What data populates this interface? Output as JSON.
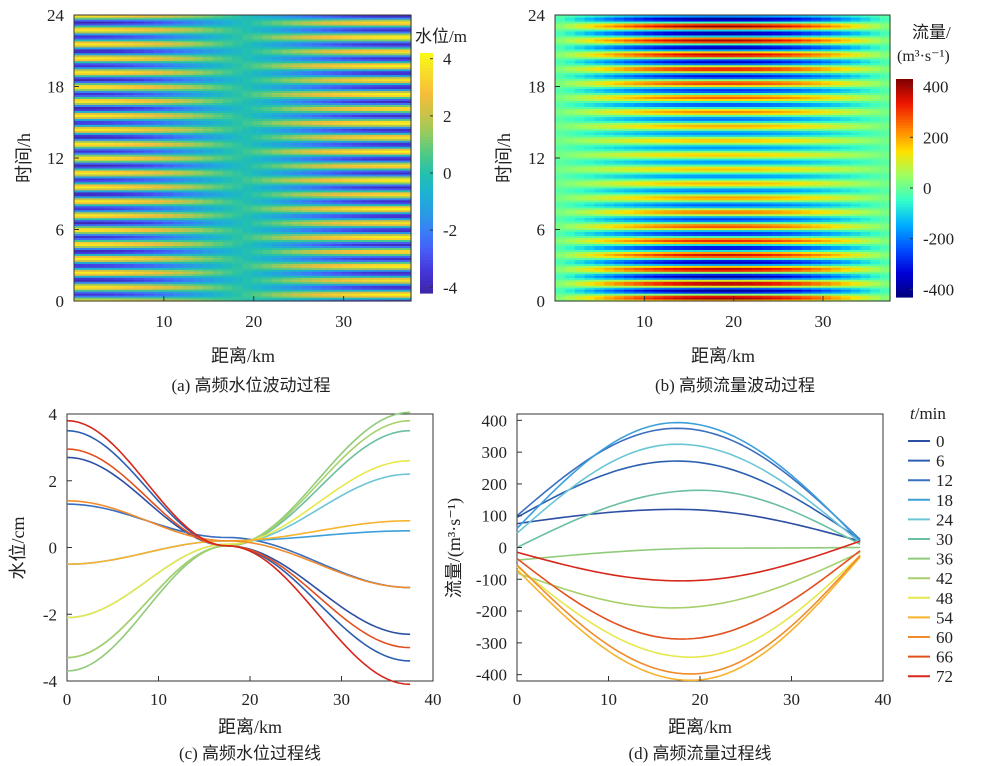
{
  "colormap": [
    "#3e26a8",
    "#4433d6",
    "#4758f5",
    "#3a7cf8",
    "#2a9be3",
    "#1cb2d2",
    "#24c1ac",
    "#52ca84",
    "#96cb5e",
    "#cdc245",
    "#f6be3a",
    "#f7dc2a",
    "#f9fb15"
  ],
  "colormap_b": [
    "#00007f",
    "#0000d9",
    "#0050ff",
    "#00b0ff",
    "#35ffc7",
    "#9cff60",
    "#ffe100",
    "#ff7a00",
    "#ee1500",
    "#7f0000"
  ],
  "line_colors": [
    "#2c4fa3",
    "#2c5fb0",
    "#3a6fc0",
    "#3c9fdb",
    "#6ac6d6",
    "#6bbfa0",
    "#8fcc7a",
    "#a7d06a",
    "#e6e84c",
    "#f7b32b",
    "#f08c2c",
    "#e2501f",
    "#d6271b"
  ],
  "chart_data": [
    {
      "id": "a",
      "type": "heatmap",
      "caption": "(a) 高频水位波动过程",
      "xlabel": "距离/km",
      "ylabel": "时间/h",
      "x_ticks": [
        "10",
        "20",
        "30"
      ],
      "y_ticks": [
        "0",
        "6",
        "12",
        "18",
        "24"
      ],
      "xlim": [
        0,
        37.5
      ],
      "ylim": [
        0,
        24
      ],
      "colorbar_label": "水位/m",
      "colorbar_ticks": [
        "4",
        "2",
        "0",
        "-2",
        "-4"
      ],
      "clim": [
        -4.2,
        4.2
      ],
      "description_values": {
        "period_h": 1.2,
        "node_km": 18.5,
        "amplitude_left_m": 3.8,
        "amplitude_right_m": 4.1
      }
    },
    {
      "id": "b",
      "type": "heatmap",
      "caption": "(b) 高频流量波动过程",
      "xlabel": "距离/km",
      "ylabel": "时间/h",
      "x_ticks": [
        "10",
        "20",
        "30"
      ],
      "y_ticks": [
        "0",
        "6",
        "12",
        "18",
        "24"
      ],
      "xlim": [
        0,
        37.5
      ],
      "ylim": [
        0,
        24
      ],
      "colorbar_label": "流量/",
      "colorbar_label_unit": "(m³·s⁻¹)",
      "colorbar_ticks": [
        "400",
        "200",
        "0",
        "-200",
        "-400"
      ],
      "clim": [
        -430,
        430
      ]
    },
    {
      "id": "c",
      "type": "line",
      "caption": "(c) 高频水位过程线",
      "xlabel": "距离/km",
      "ylabel": "水位/cm",
      "xlim": [
        0,
        40
      ],
      "ylim": [
        -4,
        4
      ],
      "x_ticks": [
        "0",
        "10",
        "20",
        "30",
        "40"
      ],
      "y_ticks": [
        "4",
        "2",
        "0",
        "-2",
        "-4"
      ],
      "legend_title": "t/min",
      "series": [
        {
          "name": "0",
          "x": [
            0,
            17.5,
            37.5
          ],
          "y": [
            2.7,
            0.05,
            -2.6
          ]
        },
        {
          "name": "6",
          "x": [
            0,
            17.5,
            37.5
          ],
          "y": [
            3.5,
            0.05,
            -3.4
          ]
        },
        {
          "name": "12",
          "x": [
            0,
            17.5,
            37.5
          ],
          "y": [
            1.3,
            0.3,
            -1.2
          ]
        },
        {
          "name": "18",
          "x": [
            0,
            17.5,
            37.5
          ],
          "y": [
            -0.5,
            0.2,
            0.5
          ]
        },
        {
          "name": "24",
          "x": [
            0,
            17.5,
            37.5
          ],
          "y": [
            -2.1,
            0.1,
            2.2
          ]
        },
        {
          "name": "30",
          "x": [
            0,
            17.5,
            37.5
          ],
          "y": [
            -3.3,
            0.05,
            3.5
          ]
        },
        {
          "name": "36",
          "x": [
            0,
            17.5,
            37.5
          ],
          "y": [
            -3.7,
            0.05,
            4.05
          ]
        },
        {
          "name": "42",
          "x": [
            0,
            17.5,
            37.5
          ],
          "y": [
            -3.3,
            0.05,
            3.8
          ]
        },
        {
          "name": "48",
          "x": [
            0,
            17.5,
            37.5
          ],
          "y": [
            -2.1,
            0.1,
            2.6
          ]
        },
        {
          "name": "54",
          "x": [
            0,
            17.5,
            37.5
          ],
          "y": [
            -0.5,
            0.2,
            0.8
          ]
        },
        {
          "name": "60",
          "x": [
            0,
            17.5,
            37.5
          ],
          "y": [
            1.4,
            0.2,
            -1.2
          ]
        },
        {
          "name": "66",
          "x": [
            0,
            17.5,
            37.5
          ],
          "y": [
            2.95,
            0.05,
            -3.0
          ]
        },
        {
          "name": "72",
          "x": [
            0,
            17.5,
            37.5
          ],
          "y": [
            3.8,
            0.05,
            -4.1
          ]
        }
      ]
    },
    {
      "id": "d",
      "type": "line",
      "caption": "(d) 高频流量过程线",
      "xlabel": "距离/km",
      "ylabel": "流量/(m³·s⁻¹)",
      "xlim": [
        0,
        40
      ],
      "ylim": [
        -420,
        420
      ],
      "x_ticks": [
        "0",
        "10",
        "20",
        "30",
        "40"
      ],
      "y_ticks": [
        "400",
        "300",
        "200",
        "100",
        "0",
        "-100",
        "-200",
        "-300",
        "-400"
      ],
      "series": [
        {
          "name": "0",
          "x": [
            0,
            17.5,
            37.5
          ],
          "y": [
            75,
            120,
            20
          ]
        },
        {
          "name": "6",
          "x": [
            0,
            17.5,
            37.5
          ],
          "y": [
            95,
            272,
            25
          ]
        },
        {
          "name": "12",
          "x": [
            0,
            17.5,
            37.5
          ],
          "y": [
            100,
            375,
            25
          ]
        },
        {
          "name": "18",
          "x": [
            0,
            17.5,
            37.5
          ],
          "y": [
            60,
            393,
            20
          ]
        },
        {
          "name": "24",
          "x": [
            0,
            17.5,
            37.5
          ],
          "y": [
            45,
            325,
            15
          ]
        },
        {
          "name": "30",
          "x": [
            0,
            20,
            37.5
          ],
          "y": [
            0,
            180,
            10
          ]
        },
        {
          "name": "36",
          "x": [
            0,
            22,
            37.5
          ],
          "y": [
            -40,
            -2,
            0
          ]
        },
        {
          "name": "42",
          "x": [
            0,
            17,
            37.5
          ],
          "y": [
            -80,
            -190,
            -15
          ]
        },
        {
          "name": "48",
          "x": [
            0,
            19,
            37.5
          ],
          "y": [
            -60,
            -345,
            -25
          ]
        },
        {
          "name": "54",
          "x": [
            0,
            19,
            37.5
          ],
          "y": [
            -70,
            -418,
            -30
          ]
        },
        {
          "name": "60",
          "x": [
            0,
            19,
            37.5
          ],
          "y": [
            -55,
            -398,
            -25
          ]
        },
        {
          "name": "66",
          "x": [
            0,
            18,
            37.5
          ],
          "y": [
            -35,
            -288,
            -10
          ]
        },
        {
          "name": "72",
          "x": [
            0,
            18,
            37.5
          ],
          "y": [
            -15,
            -105,
            20
          ]
        }
      ]
    }
  ]
}
